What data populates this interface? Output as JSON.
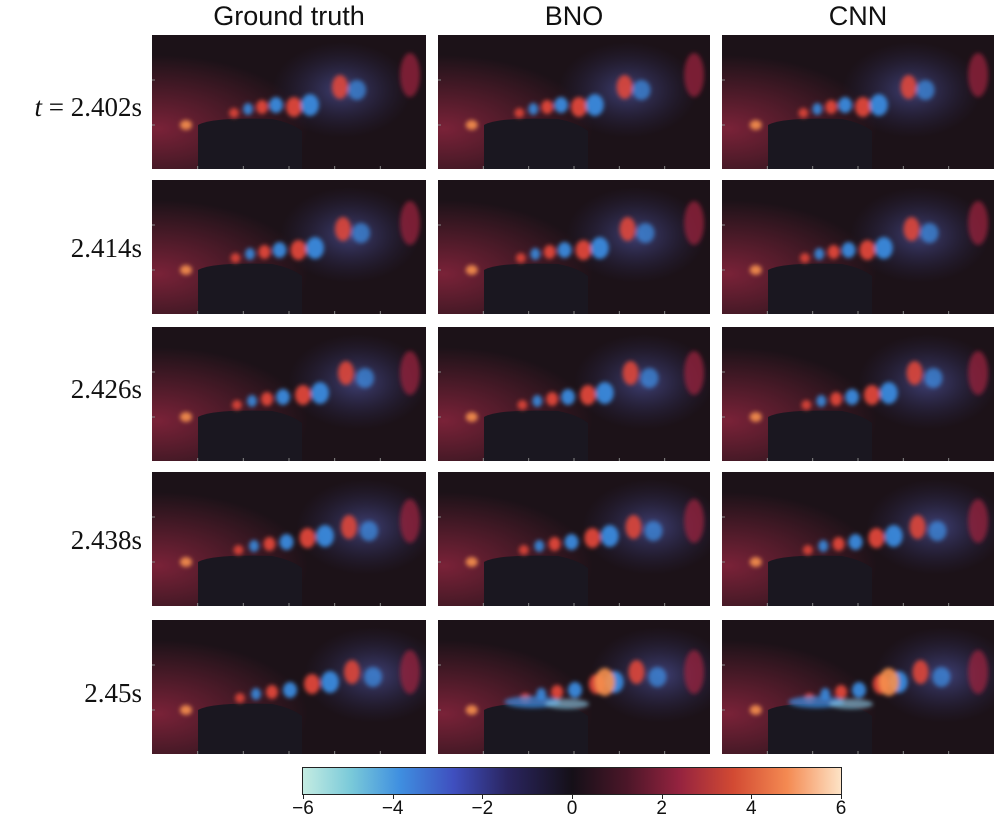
{
  "columns": [
    "Ground truth",
    "BNO",
    "CNN"
  ],
  "rows": [
    {
      "prefix": "t",
      "eq": " = ",
      "time": "2.402s"
    },
    {
      "prefix": "",
      "eq": "",
      "time": "2.414s"
    },
    {
      "prefix": "",
      "eq": "",
      "time": "2.426s"
    },
    {
      "prefix": "",
      "eq": "",
      "time": "2.438s"
    },
    {
      "prefix": "",
      "eq": "",
      "time": "2.45s"
    }
  ],
  "colorbar": {
    "ticks": [
      "−6",
      "−4",
      "−2",
      "0",
      "2",
      "4",
      "6"
    ],
    "min": -6,
    "max": 6,
    "colors": [
      "#c4ece2",
      "#3f8fe0",
      "#151018",
      "#d24a33",
      "#fde3c6"
    ]
  }
}
